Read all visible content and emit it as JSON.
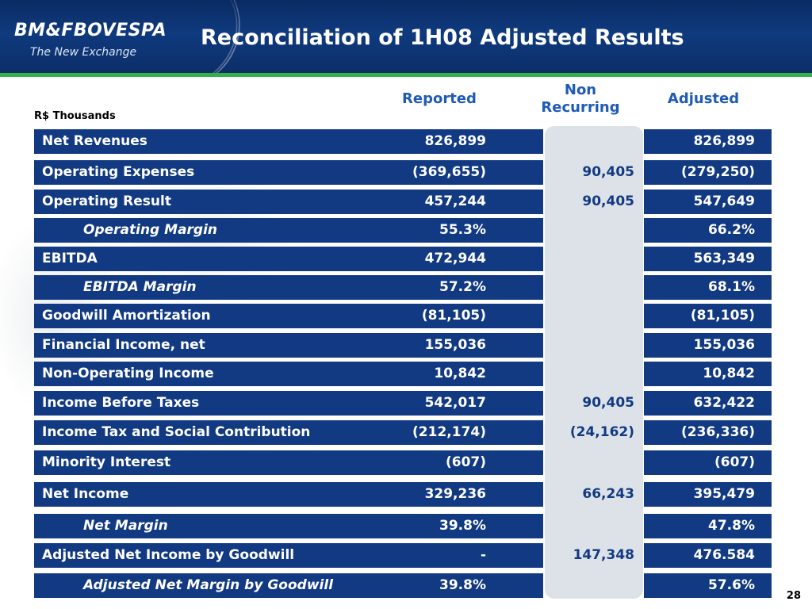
{
  "header": {
    "logo_text": "BM&FBOVESPA",
    "logo_tagline": "The New Exchange",
    "title": "Reconciliation of 1H08 Adjusted Results"
  },
  "units": "R$ Thousands",
  "columns": {
    "reported": "Reported",
    "non_recurring_line1": "Non",
    "non_recurring_line2": "Recurring",
    "adjusted": "Adjusted"
  },
  "rows": [
    {
      "label": "Net Revenues",
      "reported": "826,899",
      "non_recurring": "",
      "adjusted": "826,899",
      "italic": false
    },
    {
      "label": "Operating Expenses",
      "reported": "(369,655)",
      "non_recurring": "90,405",
      "adjusted": "(279,250)",
      "italic": false
    },
    {
      "label": "Operating Result",
      "reported": "457,244",
      "non_recurring": "90,405",
      "adjusted": "547,649",
      "italic": false
    },
    {
      "label": "Operating Margin",
      "reported": "55.3%",
      "non_recurring": "",
      "adjusted": "66.2%",
      "italic": true
    },
    {
      "label": "EBITDA",
      "reported": "472,944",
      "non_recurring": "",
      "adjusted": "563,349",
      "italic": false
    },
    {
      "label": "EBITDA Margin",
      "reported": "57.2%",
      "non_recurring": "",
      "adjusted": "68.1%",
      "italic": true
    },
    {
      "label": "Goodwill Amortization",
      "reported": "(81,105)",
      "non_recurring": "",
      "adjusted": "(81,105)",
      "italic": false
    },
    {
      "label": "Financial Income, net",
      "reported": "155,036",
      "non_recurring": "",
      "adjusted": "155,036",
      "italic": false
    },
    {
      "label": "Non-Operating Income",
      "reported": "10,842",
      "non_recurring": "",
      "adjusted": "10,842",
      "italic": false
    },
    {
      "label": "Income Before Taxes",
      "reported": "542,017",
      "non_recurring": "90,405",
      "adjusted": "632,422",
      "italic": false
    },
    {
      "label": "Income Tax and Social Contribution",
      "reported": "(212,174)",
      "non_recurring": "(24,162)",
      "adjusted": "(236,336)",
      "italic": false
    },
    {
      "label": "Minority Interest",
      "reported": "(607)",
      "non_recurring": "",
      "adjusted": "(607)",
      "italic": false
    },
    {
      "label": "Net Income",
      "reported": "329,236",
      "non_recurring": "66,243",
      "adjusted": "395,479",
      "italic": false
    },
    {
      "label": "Net Margin",
      "reported": "39.8%",
      "non_recurring": "",
      "adjusted": "47.8%",
      "italic": true
    },
    {
      "label": "Adjusted Net Income by Goodwill",
      "reported": "-",
      "non_recurring": "147,348",
      "adjusted": "476.584",
      "italic": false
    },
    {
      "label": "Adjusted Net Margin by Goodwill",
      "reported": "39.8%",
      "non_recurring": "",
      "adjusted": "57.6%",
      "italic": true
    }
  ],
  "page_number": "28",
  "colors": {
    "header_bg": "#0c2e68",
    "accent_green": "#32b34a",
    "row_bg": "#123a82",
    "column_header": "#1f5bb5",
    "highlight_column": "#dde2e8"
  }
}
